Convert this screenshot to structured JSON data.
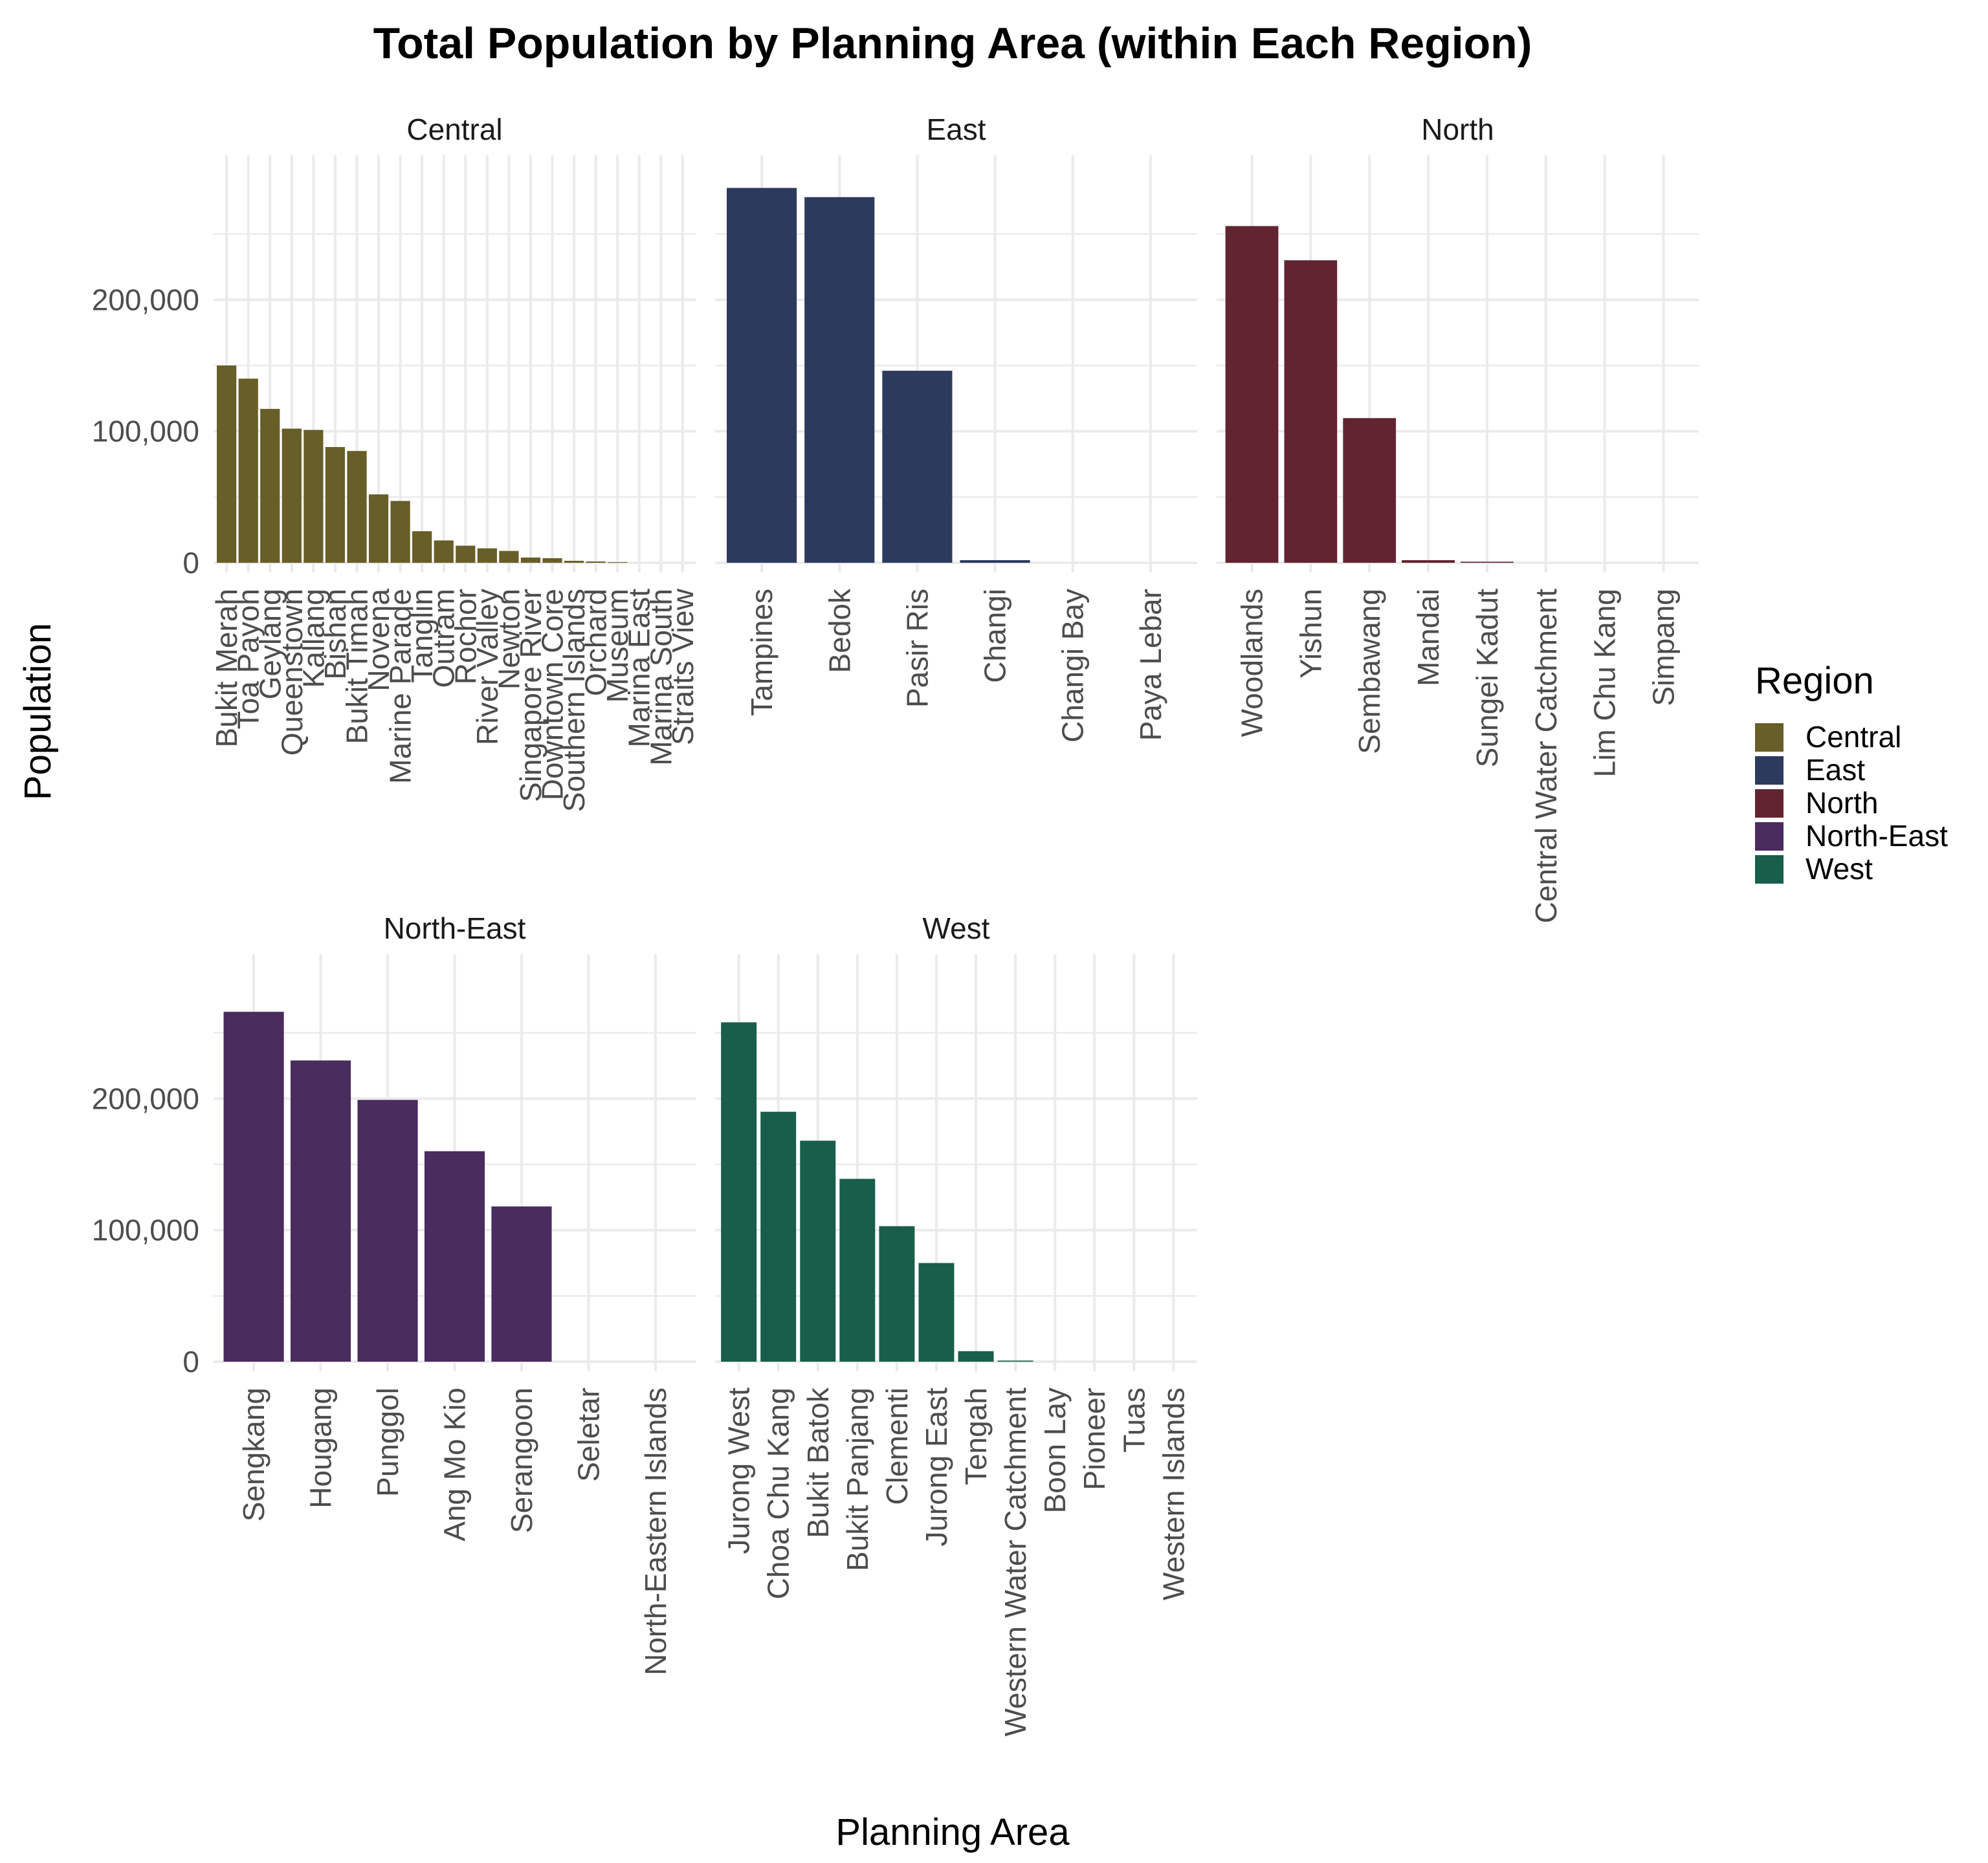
{
  "chart_data": {
    "type": "bar",
    "title": "Total Population by Planning Area (within Each Region)",
    "xlabel": "Planning Area",
    "ylabel": "Population",
    "ylim": [
      0,
      300000
    ],
    "y_ticks": [
      {
        "value": 0,
        "label": "0"
      },
      {
        "value": 100000,
        "label": "100,000"
      },
      {
        "value": 200000,
        "label": "200,000"
      }
    ],
    "grid": true,
    "legend": {
      "title": "Region",
      "position": "right",
      "items": [
        {
          "label": "Central",
          "color": "#675E28"
        },
        {
          "label": "East",
          "color": "#2C3A5E"
        },
        {
          "label": "North",
          "color": "#632432"
        },
        {
          "label": "North-East",
          "color": "#4A2C5E"
        },
        {
          "label": "West",
          "color": "#185E4A"
        }
      ]
    },
    "facets": [
      {
        "region": "Central",
        "color": "#675E28",
        "categories": [
          "Bukit Merah",
          "Toa Payoh",
          "Geylang",
          "Queenstown",
          "Kallang",
          "Bishan",
          "Bukit Timah",
          "Novena",
          "Marine Parade",
          "Tanglin",
          "Outram",
          "Rochor",
          "River Valley",
          "Newton",
          "Singapore River",
          "Downtown Core",
          "Southern Islands",
          "Orchard",
          "Museum",
          "Marina East",
          "Marina South",
          "Straits View"
        ],
        "values": [
          150000,
          140000,
          117000,
          102000,
          101000,
          88000,
          85000,
          52000,
          47000,
          24000,
          17000,
          13000,
          11000,
          9000,
          4000,
          3500,
          1500,
          1000,
          500,
          0,
          0,
          0
        ]
      },
      {
        "region": "East",
        "color": "#2C3A5E",
        "categories": [
          "Tampines",
          "Bedok",
          "Pasir Ris",
          "Changi",
          "Changi Bay",
          "Paya Lebar"
        ],
        "values": [
          285000,
          278000,
          146000,
          2000,
          0,
          0
        ]
      },
      {
        "region": "North",
        "color": "#632432",
        "categories": [
          "Woodlands",
          "Yishun",
          "Sembawang",
          "Mandai",
          "Sungei Kadut",
          "Central Water Catchment",
          "Lim Chu Kang",
          "Simpang"
        ],
        "values": [
          256000,
          230000,
          110000,
          2000,
          800,
          0,
          0,
          0
        ]
      },
      {
        "region": "North-East",
        "color": "#4A2C5E",
        "categories": [
          "Sengkang",
          "Hougang",
          "Punggol",
          "Ang Mo Kio",
          "Serangoon",
          "Seletar",
          "North-Eastern Islands"
        ],
        "values": [
          266000,
          229000,
          199000,
          160000,
          118000,
          0,
          0
        ]
      },
      {
        "region": "West",
        "color": "#185E4A",
        "categories": [
          "Jurong West",
          "Choa Chu Kang",
          "Bukit Batok",
          "Bukit Panjang",
          "Clementi",
          "Jurong East",
          "Tengah",
          "Western Water Catchment",
          "Boon Lay",
          "Pioneer",
          "Tuas",
          "Western Islands"
        ],
        "values": [
          258000,
          190000,
          168000,
          139000,
          103000,
          75000,
          8000,
          800,
          0,
          0,
          0,
          0
        ]
      }
    ]
  }
}
